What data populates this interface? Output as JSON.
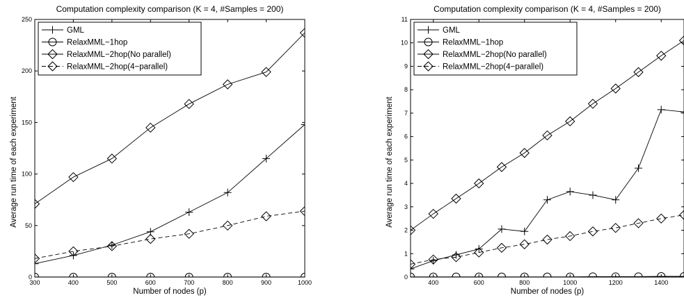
{
  "chart_data": [
    {
      "type": "line",
      "title": "Computation complexity comparison (K = 4, #Samples = 200)",
      "xlabel": "Number of nodes (p)",
      "ylabel": "Average run time of each experiment",
      "xlim": [
        300,
        1000
      ],
      "ylim": [
        0,
        250
      ],
      "xticks": [
        300,
        400,
        500,
        600,
        700,
        800,
        900,
        1000
      ],
      "yticks": [
        0,
        50,
        100,
        150,
        200,
        250
      ],
      "grid": false,
      "legend_position": "top-left",
      "series": [
        {
          "name": "GML",
          "marker": "plus",
          "dash": "solid",
          "x": [
            300,
            400,
            500,
            600,
            700,
            800,
            900,
            1000
          ],
          "y": [
            13,
            21,
            31,
            44,
            63,
            82,
            115,
            148
          ]
        },
        {
          "name": "RelaxMML−1hop",
          "marker": "circle",
          "dash": "solid",
          "x": [
            300,
            400,
            500,
            600,
            700,
            800,
            900,
            1000
          ],
          "y": [
            0.1,
            0.1,
            0.1,
            0.1,
            0.1,
            0.1,
            0.1,
            0.1
          ]
        },
        {
          "name": "RelaxMML−2hop(No parallel)",
          "marker": "diamond",
          "dash": "solid",
          "x": [
            300,
            400,
            500,
            600,
            700,
            800,
            900,
            1000
          ],
          "y": [
            71,
            97,
            115,
            145,
            168,
            187,
            199,
            237
          ]
        },
        {
          "name": "RelaxMML−2hop(4−parallel)",
          "marker": "diamond",
          "dash": "dashed",
          "x": [
            300,
            400,
            500,
            600,
            700,
            800,
            900,
            1000
          ],
          "y": [
            18,
            25,
            30,
            37,
            42,
            50,
            59,
            64
          ]
        }
      ]
    },
    {
      "type": "line",
      "title": "Computation complexity comparison (K = 4, #Samples = 200)",
      "xlabel": "Number of nodes (p)",
      "ylabel": "Average run time of each experiment",
      "xlim": [
        300,
        1500
      ],
      "ylim": [
        0,
        11
      ],
      "xticks": [
        400,
        600,
        800,
        1000,
        1200,
        1400
      ],
      "yticks": [
        0,
        1,
        2,
        3,
        4,
        5,
        6,
        7,
        8,
        9,
        10,
        11
      ],
      "grid": false,
      "legend_position": "top-left",
      "series": [
        {
          "name": "GML",
          "marker": "plus",
          "dash": "solid",
          "x": [
            300,
            400,
            500,
            600,
            700,
            800,
            900,
            1000,
            1100,
            1200,
            1300,
            1400,
            1500
          ],
          "y": [
            0.35,
            0.7,
            0.95,
            1.2,
            2.05,
            1.95,
            3.3,
            3.65,
            3.5,
            3.3,
            4.65,
            7.15,
            7.05
          ]
        },
        {
          "name": "RelaxMML−1hop",
          "marker": "circle",
          "dash": "solid",
          "x": [
            300,
            400,
            500,
            600,
            700,
            800,
            900,
            1000,
            1100,
            1200,
            1300,
            1400,
            1500
          ],
          "y": [
            0.01,
            0.01,
            0.01,
            0.01,
            0.01,
            0.01,
            0.01,
            0.01,
            0.02,
            0.02,
            0.02,
            0.03,
            0.03
          ]
        },
        {
          "name": "RelaxMML−2hop(No parallel)",
          "marker": "diamond",
          "dash": "solid",
          "x": [
            300,
            400,
            500,
            600,
            700,
            800,
            900,
            1000,
            1100,
            1200,
            1300,
            1400,
            1500
          ],
          "y": [
            2.0,
            2.7,
            3.35,
            4.0,
            4.7,
            5.3,
            6.05,
            6.65,
            7.4,
            8.05,
            8.75,
            9.45,
            10.1
          ]
        },
        {
          "name": "RelaxMML−2hop(4−parallel)",
          "marker": "diamond",
          "dash": "dashed",
          "x": [
            300,
            400,
            500,
            600,
            700,
            800,
            900,
            1000,
            1100,
            1200,
            1300,
            1400,
            1500
          ],
          "y": [
            0.55,
            0.75,
            0.85,
            1.05,
            1.25,
            1.4,
            1.6,
            1.75,
            1.95,
            2.1,
            2.3,
            2.5,
            2.65
          ]
        }
      ]
    }
  ]
}
